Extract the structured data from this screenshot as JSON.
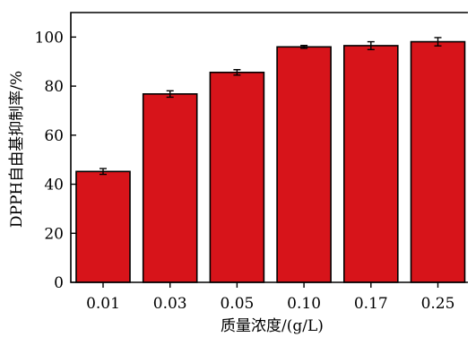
{
  "chart_data": {
    "type": "bar",
    "title": "",
    "xlabel": "质量浓度/(g/L)",
    "ylabel": "DPPH自由基抑制率/%",
    "categories": [
      "0.01",
      "0.03",
      "0.05",
      "0.10",
      "0.17",
      "0.25"
    ],
    "values": [
      45.2,
      76.8,
      85.6,
      96.0,
      96.5,
      98.1
    ],
    "errors": [
      1.2,
      1.3,
      1.1,
      0.6,
      1.6,
      1.7
    ],
    "ylim": [
      0,
      110
    ],
    "yticks": [
      0,
      20,
      40,
      60,
      80,
      100
    ],
    "ytick_labels": [
      "0",
      "20",
      "40",
      "60",
      "80",
      "100"
    ],
    "grid": false,
    "legend": false,
    "bar_color": "#d7141a",
    "edge_color": "#000000"
  }
}
